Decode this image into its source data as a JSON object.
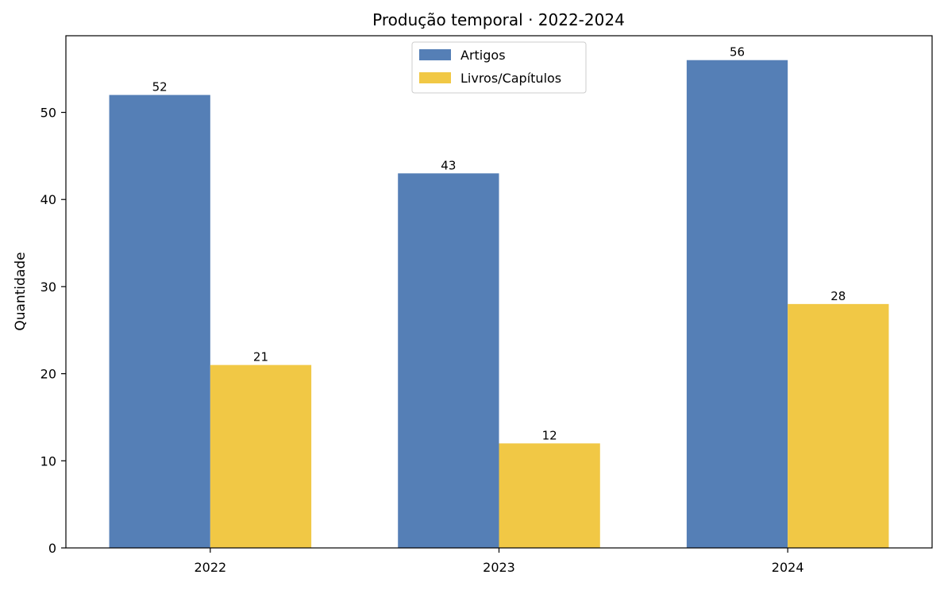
{
  "chart_data": {
    "type": "bar",
    "title": "Produção temporal · 2022-2024",
    "xlabel": "",
    "ylabel": "Quantidade",
    "categories": [
      "2022",
      "2023",
      "2024"
    ],
    "series": [
      {
        "name": "Artigos",
        "values": [
          52,
          43,
          56
        ],
        "color": "#557fb6"
      },
      {
        "name": "Livros/Capítulos",
        "values": [
          21,
          12,
          28
        ],
        "color": "#f1c845"
      }
    ],
    "ylim": [
      0,
      58.8
    ],
    "yticks": [
      0,
      10,
      20,
      30,
      40,
      50
    ],
    "grid": false,
    "legend_position": "upper-center"
  }
}
